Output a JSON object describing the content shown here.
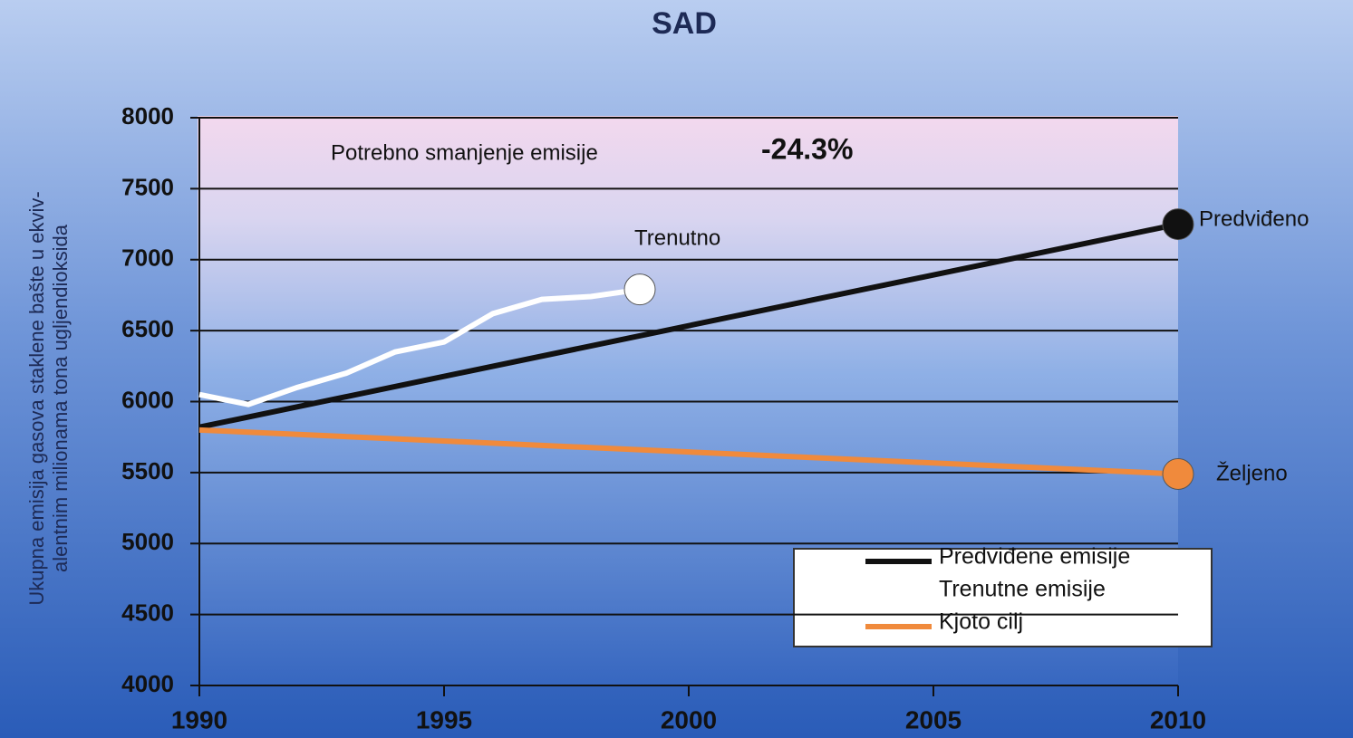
{
  "chart_data": {
    "type": "line",
    "title": "SAD",
    "y_label": [
      "Ukupna emisija gasova staklene bašte u ekviv-",
      "alentnim milionama tona ugljendioksida"
    ],
    "annotations": {
      "reduction_label": "Potrebno smanjenje emisije",
      "reduction_value": "-24.3%",
      "current": "Trenutno",
      "projected": "Predviđeno",
      "desired": "Željeno"
    },
    "xlim": [
      1990,
      2010
    ],
    "xticks": [
      1990,
      1995,
      2000,
      2005,
      2010
    ],
    "ylim": [
      4000,
      8000
    ],
    "yticks": [
      4000,
      4500,
      5000,
      5500,
      6000,
      6500,
      7000,
      7500,
      8000
    ],
    "grid": true,
    "legend": "lower right",
    "series": [
      {
        "name": "Predviđene emisije",
        "color": "#111111",
        "x": [
          1990,
          2010
        ],
        "values": [
          5820,
          7250
        ]
      },
      {
        "name": "Trenutne emisije",
        "color": "#ffffff",
        "x": [
          1990,
          1991,
          1992,
          1993,
          1994,
          1995,
          1996,
          1997,
          1998,
          1999
        ],
        "values": [
          6050,
          5980,
          6100,
          6200,
          6350,
          6420,
          6620,
          6720,
          6740,
          6790
        ]
      },
      {
        "name": "Kjoto cilj",
        "color": "#f08a3c",
        "x": [
          1990,
          2010
        ],
        "values": [
          5800,
          5490
        ]
      }
    ]
  }
}
